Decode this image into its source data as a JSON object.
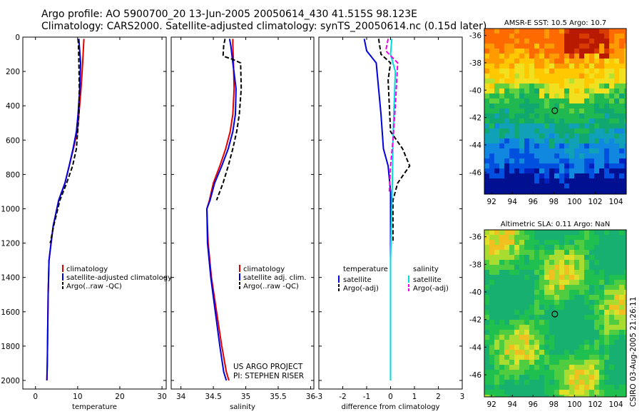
{
  "header": {
    "line1": "Argo profile: AO 5900700_20 13-Jun-2005 20050614_430 41.515S 98.123E",
    "line2": "Climatology: CARS2000. Satellite-adjusted climatology: synTS_20050614.nc (0.15d later)"
  },
  "side_stamp": "CSIRO 03-Aug-2005 21:26:11",
  "colors": {
    "climatology": "#e00000",
    "satellite": "#0000e0",
    "argo": "#000000",
    "salinity_sat": "#00dddd",
    "salinity_argo": "#ee00ee"
  },
  "chart_data": [
    {
      "type": "line",
      "panel": "temperature",
      "xlabel": "temperature",
      "ylabel": "",
      "xlim": [
        -3,
        31
      ],
      "ylim": [
        2050,
        0
      ],
      "y_reversed": true,
      "xticks": [
        0,
        10,
        20,
        30
      ],
      "yticks": [
        0,
        200,
        400,
        600,
        800,
        1000,
        1200,
        1400,
        1600,
        1800,
        2000
      ],
      "legend_position": "lower-right",
      "series": [
        {
          "name": "climatology",
          "color": "#e00000",
          "dash": "solid",
          "x": [
            11.5,
            11.4,
            11.2,
            10.8,
            10.3,
            9.9,
            9.0,
            8.0,
            7.0,
            5.5,
            4.2,
            3.7,
            3.2,
            3.0,
            2.9,
            2.8,
            2.7
          ],
          "y": [
            10,
            50,
            150,
            300,
            450,
            550,
            650,
            750,
            850,
            950,
            1100,
            1200,
            1300,
            1500,
            1700,
            1900,
            2000
          ]
        },
        {
          "name": "satellite-adjusted climatology",
          "color": "#0000e0",
          "dash": "solid",
          "x": [
            10.3,
            10.4,
            10.7,
            10.5,
            10.1,
            9.7,
            8.9,
            8.0,
            7.0,
            5.5,
            4.2,
            3.7,
            3.2,
            3.0,
            2.9,
            2.8,
            2.7
          ],
          "y": [
            10,
            50,
            150,
            300,
            450,
            550,
            650,
            750,
            850,
            950,
            1100,
            1200,
            1300,
            1500,
            1700,
            1900,
            2000
          ]
        },
        {
          "name": "Argo(..raw -QC)",
          "color": "#000000",
          "dash": "dashed",
          "x": [
            10.1,
            10.2,
            10.3,
            10.4,
            10.3,
            10.0,
            9.7,
            8.8,
            7.4,
            5.8,
            4.3,
            3.5
          ],
          "y": [
            10,
            50,
            150,
            300,
            450,
            550,
            650,
            750,
            850,
            950,
            1100,
            1200
          ]
        }
      ]
    },
    {
      "type": "line",
      "panel": "salinity",
      "xlabel": "salinity",
      "ylabel": "",
      "xlim": [
        33.85,
        36.05
      ],
      "ylim": [
        2050,
        0
      ],
      "y_reversed": true,
      "xticks": [
        34,
        34.5,
        35,
        35.5,
        36
      ],
      "xticklabels": [
        "34",
        "34.5",
        "35",
        "35.5",
        "36"
      ],
      "legend_position": "lower-right",
      "series": [
        {
          "name": "climatology",
          "color": "#e00000",
          "dash": "solid",
          "x": [
            34.8,
            34.8,
            34.81,
            34.82,
            34.8,
            34.76,
            34.69,
            34.6,
            34.5,
            34.44,
            34.4,
            34.42,
            34.47,
            34.55,
            34.63,
            34.7,
            34.74
          ],
          "y": [
            10,
            50,
            150,
            300,
            450,
            550,
            650,
            750,
            850,
            950,
            1000,
            1200,
            1400,
            1600,
            1800,
            1950,
            2000
          ]
        },
        {
          "name": "satellite adj. clim.",
          "color": "#0000e0",
          "dash": "solid",
          "x": [
            34.75,
            34.77,
            34.8,
            34.85,
            34.84,
            34.8,
            34.73,
            34.63,
            34.52,
            34.45,
            34.4,
            34.41,
            34.46,
            34.53,
            34.6,
            34.66,
            34.7
          ],
          "y": [
            10,
            50,
            150,
            300,
            450,
            550,
            650,
            750,
            850,
            950,
            1000,
            1200,
            1400,
            1600,
            1800,
            1950,
            2000
          ]
        },
        {
          "name": "Argo(..raw -QC)",
          "color": "#000000",
          "dash": "dashed",
          "x": [
            34.68,
            34.66,
            34.65,
            34.8,
            34.92,
            34.93,
            34.9,
            34.86,
            34.8,
            34.73,
            34.65,
            34.55
          ],
          "y": [
            10,
            50,
            110,
            130,
            150,
            300,
            450,
            550,
            650,
            750,
            850,
            950
          ]
        }
      ]
    },
    {
      "type": "line",
      "panel": "difference",
      "xlabel": "difference from climatology",
      "ylabel": "",
      "xlim": [
        -3,
        3
      ],
      "ylim": [
        2050,
        0
      ],
      "y_reversed": true,
      "xticks": [
        -3,
        -2,
        -1,
        0,
        1,
        2,
        3
      ],
      "legend_position": "lower",
      "legend_groups": [
        "temperature",
        "salinity"
      ],
      "series": [
        {
          "name": "satellite",
          "group": "temperature",
          "color": "#0000e0",
          "dash": "solid",
          "x": [
            -1.1,
            -1.0,
            -0.6,
            -0.4,
            -0.3,
            -0.1,
            0.0,
            0.0,
            0.0,
            0.0,
            0.0
          ],
          "y": [
            10,
            80,
            150,
            450,
            650,
            750,
            900,
            1000,
            1300,
            1700,
            2000
          ]
        },
        {
          "name": "Argo(-adj)",
          "group": "temperature",
          "color": "#000000",
          "dash": "dashed",
          "x": [
            -0.5,
            -0.4,
            0.0,
            -0.1,
            0.0,
            0.5,
            0.8,
            0.3,
            0.1,
            0.1
          ],
          "y": [
            10,
            100,
            150,
            250,
            550,
            650,
            750,
            850,
            950,
            1200
          ]
        },
        {
          "name": "satellite",
          "group": "salinity",
          "color": "#00dddd",
          "dash": "solid",
          "x": [
            0.05,
            0.0,
            0.2,
            0.15,
            0.1,
            0.08,
            0.05,
            0.0,
            0.0,
            0.0
          ],
          "y": [
            10,
            100,
            200,
            400,
            600,
            800,
            1000,
            1300,
            1700,
            2000
          ]
        },
        {
          "name": "Argo(-adj)",
          "group": "salinity",
          "color": "#ee00ee",
          "dash": "dashed",
          "x": [
            -0.1,
            -0.2,
            0.3,
            0.2,
            0.1,
            0.0,
            -0.05
          ],
          "y": [
            10,
            80,
            150,
            400,
            600,
            750,
            900
          ]
        }
      ]
    },
    {
      "type": "heatmap",
      "panel": "sst-map",
      "title": "AMSR-E SST: 10.5 Argo: 10.7",
      "xlim": [
        91.3,
        105
      ],
      "ylim": [
        -47.6,
        -35.5
      ],
      "xticks": [
        92,
        94,
        96,
        98,
        100,
        102,
        104
      ],
      "yticks": [
        -36,
        -38,
        -40,
        -42,
        -44,
        -46
      ],
      "marker": {
        "x": 98.1,
        "y": -41.5
      },
      "bands": [
        {
          "label": "warm",
          "colors": [
            "#c81e00",
            "#ff7a00",
            "#ffc400"
          ]
        },
        {
          "label": "mid",
          "colors": [
            "#e6f020",
            "#60d040",
            "#10b050"
          ]
        },
        {
          "label": "cool",
          "colors": [
            "#10a0c0",
            "#0060e0",
            "#0010a0"
          ]
        }
      ]
    },
    {
      "type": "heatmap",
      "panel": "sla-map",
      "title": "Altimetric SLA: 0.11 Argo: NaN",
      "xlim": [
        91.3,
        105
      ],
      "ylim": [
        -47.6,
        -35.5
      ],
      "xticks": [
        92,
        94,
        96,
        98,
        100,
        102,
        104
      ],
      "yticks": [
        -36,
        -38,
        -40,
        -42,
        -44,
        -46
      ],
      "marker": {
        "x": 98.1,
        "y": -41.6
      },
      "bands": [
        {
          "label": "mixed",
          "colors": [
            "#18b848",
            "#40c840",
            "#80d830",
            "#c8e828",
            "#f0d020",
            "#20b0a0"
          ]
        }
      ]
    }
  ],
  "panel_annotations": {
    "project": "US ARGO PROJECT",
    "pi": "PI: STEPHEN RISER"
  }
}
